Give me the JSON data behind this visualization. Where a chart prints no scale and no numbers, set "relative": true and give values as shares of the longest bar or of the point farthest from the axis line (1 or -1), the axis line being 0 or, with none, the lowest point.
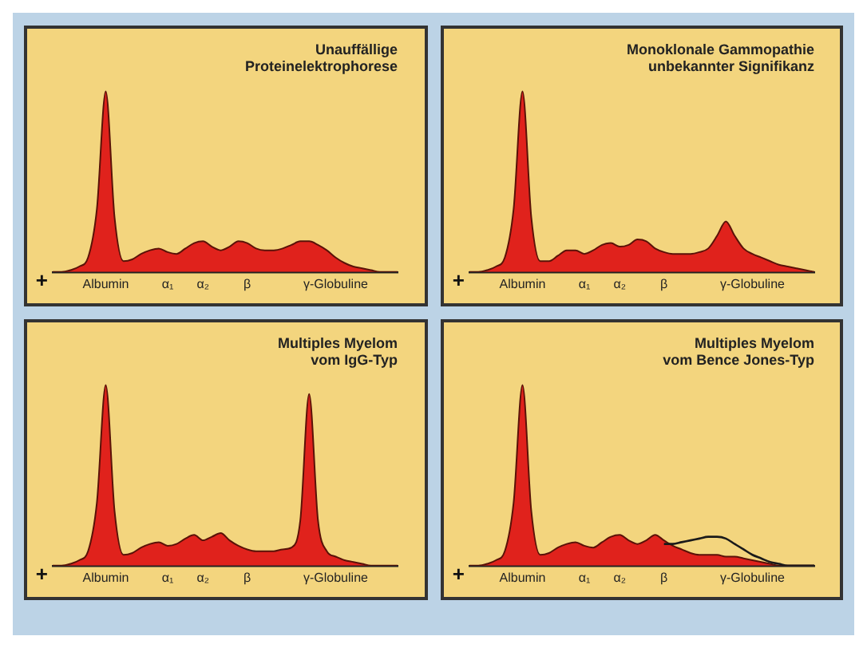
{
  "chart_data": [
    {
      "type": "area",
      "relative": true,
      "title": "Unauffällige Proteinelektrophorese",
      "annotations": [
        "+"
      ],
      "categories": [
        null,
        null,
        null,
        null,
        null,
        null,
        "Albumin",
        null,
        null,
        null,
        null,
        null,
        null,
        "α₁",
        null,
        null,
        null,
        "α₂",
        null,
        null,
        null,
        null,
        "β",
        null,
        null,
        null,
        null,
        null,
        null,
        null,
        null,
        null,
        "γ-Globuline",
        null,
        null,
        null,
        null,
        null,
        null,
        null
      ],
      "series": [
        {
          "color": "#e0221c",
          "values": [
            0,
            0,
            0.01,
            0.03,
            0.08,
            0.35,
            1,
            0.3,
            0.06,
            0.07,
            0.1,
            0.12,
            0.13,
            0.11,
            0.1,
            0.13,
            0.16,
            0.17,
            0.14,
            0.12,
            0.14,
            0.17,
            0.16,
            0.13,
            0.12,
            0.12,
            0.13,
            0.15,
            0.17,
            0.17,
            0.15,
            0.12,
            0.08,
            0.05,
            0.03,
            0.02,
            0.01,
            0,
            0,
            0
          ]
        }
      ]
    },
    {
      "type": "area",
      "relative": true,
      "title": "Monoklonale Gammopathie unbekannter Signifikanz",
      "annotations": [
        "+"
      ],
      "categories": [
        null,
        null,
        null,
        null,
        null,
        null,
        "Albumin",
        null,
        null,
        null,
        null,
        null,
        null,
        "α₁",
        null,
        null,
        null,
        "α₂",
        null,
        null,
        null,
        null,
        "β",
        null,
        null,
        null,
        null,
        null,
        null,
        null,
        null,
        null,
        "γ-Globuline",
        null,
        null,
        null,
        null,
        null,
        null,
        null
      ],
      "series": [
        {
          "color": "#e0221c",
          "values": [
            0,
            0,
            0.01,
            0.03,
            0.08,
            0.35,
            1,
            0.3,
            0.06,
            0.06,
            0.09,
            0.12,
            0.12,
            0.1,
            0.12,
            0.15,
            0.16,
            0.14,
            0.15,
            0.18,
            0.17,
            0.13,
            0.11,
            0.1,
            0.1,
            0.1,
            0.11,
            0.13,
            0.2,
            0.28,
            0.2,
            0.13,
            0.1,
            0.08,
            0.06,
            0.04,
            0.03,
            0.02,
            0.01,
            0
          ]
        }
      ]
    },
    {
      "type": "area",
      "relative": true,
      "title": "Multiples Myelom vom IgG-Typ",
      "annotations": [
        "+"
      ],
      "categories": [
        null,
        null,
        null,
        null,
        null,
        null,
        "Albumin",
        null,
        null,
        null,
        null,
        null,
        null,
        "α₁",
        null,
        null,
        null,
        "α₂",
        null,
        null,
        null,
        null,
        "β",
        null,
        null,
        null,
        null,
        null,
        null,
        null,
        null,
        null,
        "γ-Globuline",
        null,
        null,
        null,
        null,
        null,
        null,
        null
      ],
      "series": [
        {
          "color": "#e0221c",
          "values": [
            0,
            0,
            0.01,
            0.03,
            0.08,
            0.35,
            1,
            0.3,
            0.06,
            0.07,
            0.1,
            0.12,
            0.13,
            0.11,
            0.12,
            0.15,
            0.17,
            0.14,
            0.16,
            0.18,
            0.14,
            0.11,
            0.09,
            0.08,
            0.08,
            0.08,
            0.09,
            0.1,
            0.25,
            0.95,
            0.25,
            0.08,
            0.05,
            0.03,
            0.02,
            0.01,
            0,
            0,
            0,
            0
          ]
        }
      ]
    },
    {
      "type": "area",
      "relative": true,
      "title": "Multiples Myelom vom Bence Jones-Typ",
      "annotations": [
        "+"
      ],
      "categories": [
        null,
        null,
        null,
        null,
        null,
        null,
        "Albumin",
        null,
        null,
        null,
        null,
        null,
        null,
        "α₁",
        null,
        null,
        null,
        "α₂",
        null,
        null,
        null,
        null,
        "β",
        null,
        null,
        null,
        null,
        null,
        null,
        null,
        null,
        null,
        "γ-Globuline",
        null,
        null,
        null,
        null,
        null,
        null,
        null
      ],
      "series": [
        {
          "color": "#e0221c",
          "values": [
            0,
            0,
            0.01,
            0.03,
            0.08,
            0.35,
            1,
            0.3,
            0.06,
            0.07,
            0.1,
            0.12,
            0.13,
            0.11,
            0.1,
            0.13,
            0.16,
            0.17,
            0.14,
            0.12,
            0.14,
            0.17,
            0.14,
            0.11,
            0.09,
            0.07,
            0.06,
            0.06,
            0.06,
            0.05,
            0.05,
            0.04,
            0.03,
            0.02,
            0.01,
            0,
            0,
            0,
            0,
            0
          ]
        },
        {
          "type": "line",
          "color": "#1a1a1a",
          "values": [
            null,
            null,
            null,
            null,
            null,
            null,
            null,
            null,
            null,
            null,
            null,
            null,
            null,
            null,
            null,
            null,
            null,
            null,
            null,
            null,
            null,
            null,
            0.12,
            0.12,
            0.13,
            0.14,
            0.15,
            0.16,
            0.16,
            0.15,
            0.12,
            0.09,
            0.06,
            0.04,
            0.02,
            0.01,
            0,
            0,
            0,
            0
          ]
        }
      ]
    }
  ]
}
